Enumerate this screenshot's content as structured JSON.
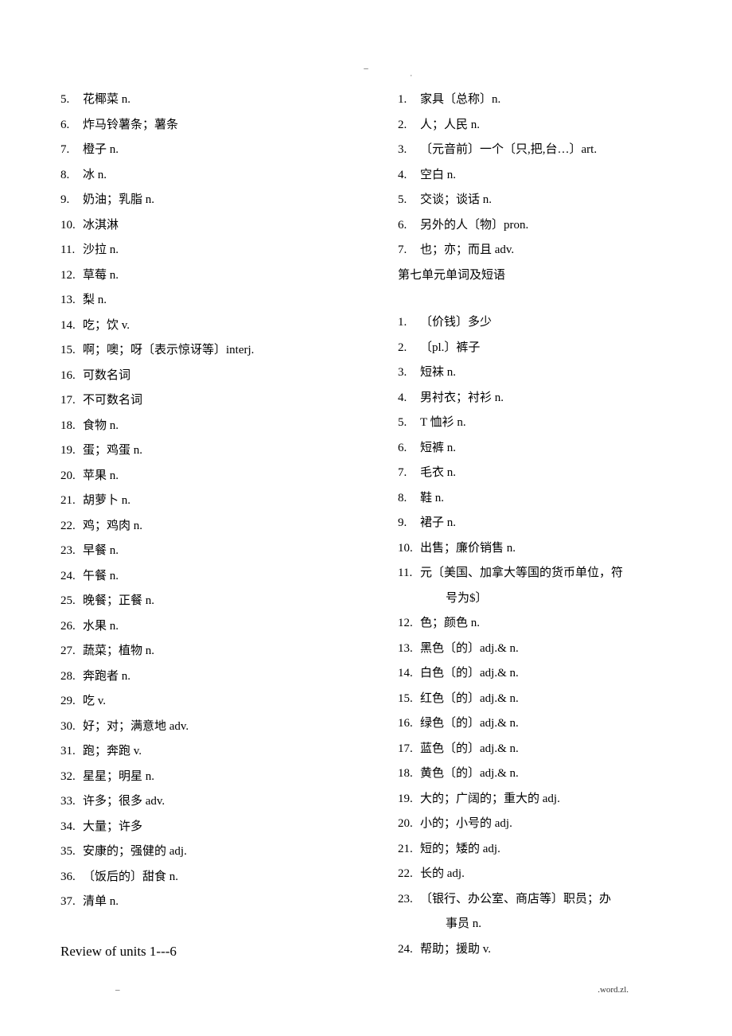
{
  "page_markers": {
    "top_dash": "–",
    "top_dot": "·",
    "footer_left": "–",
    "footer_right": ".word.zl."
  },
  "left_column": {
    "items": [
      {
        "num": "5.",
        "text": "花椰菜 n.",
        "indent": false
      },
      {
        "num": "6.",
        "text": "炸马铃薯条；薯条",
        "indent": false
      },
      {
        "num": "7.",
        "text": "橙子 n.",
        "indent": false
      },
      {
        "num": "8.",
        "text": "冰 n.",
        "indent": false
      },
      {
        "num": "9.",
        "text": " 奶油；乳脂 n.",
        "indent": false
      },
      {
        "num": "10.",
        "text": "冰淇淋",
        "indent": false
      },
      {
        "num": "11.",
        "text": "沙拉 n.",
        "indent": false
      },
      {
        "num": "12.",
        "text": "草莓 n.",
        "indent": false
      },
      {
        "num": "13.",
        "text": " 梨 n.",
        "indent": false
      },
      {
        "num": "14.",
        "text": " 吃；饮 v.",
        "indent": false
      },
      {
        "num": "15.",
        "text": "   啊；噢；呀〔表示惊讶等〕interj.",
        "indent": false
      },
      {
        "num": "16.",
        "text": "     可数名词",
        "indent": false
      },
      {
        "num": "17.",
        "text": "     不可数名词",
        "indent": false
      },
      {
        "num": "18.",
        "text": "食物 n.",
        "indent": false
      },
      {
        "num": "19.",
        "text": "蛋；鸡蛋 n.",
        "indent": false
      },
      {
        "num": "20.",
        "text": "苹果 n.",
        "indent": false
      },
      {
        "num": "21.",
        "text": "胡萝卜 n.",
        "indent": false
      },
      {
        "num": "22.",
        "text": "     鸡；鸡肉 n.",
        "indent": false
      },
      {
        "num": "23.",
        "text": "     早餐 n.",
        "indent": false
      },
      {
        "num": "24.",
        "text": "午餐 n.",
        "indent": false
      },
      {
        "num": "25.",
        "text": "晚餐；正餐 n.",
        "indent": false
      },
      {
        "num": "26.",
        "text": "水果 n.",
        "indent": false
      },
      {
        "num": "27.",
        "text": "蔬菜；植物 n.",
        "indent": false
      },
      {
        "num": "28.",
        "text": "奔跑者 n.",
        "indent": false
      },
      {
        "num": "29.",
        "text": "     吃 v.",
        "indent": false
      },
      {
        "num": "30.",
        "text": "     好；对；满意地 adv.",
        "indent": false
      },
      {
        "num": "31.",
        "text": "     跑；奔跑 v.",
        "indent": false
      },
      {
        "num": "32.",
        "text": "星星；明星 n.",
        "indent": false
      },
      {
        "num": "33.",
        "text": "     许多；很多 adv.",
        "indent": false
      },
      {
        "num": "34.",
        "text": "     大量；许多",
        "indent": false
      },
      {
        "num": "35.",
        "text": "     安康的；强健的 adj.",
        "indent": false
      },
      {
        "num": "36.",
        "text": "    〔饭后的〕甜食 n.",
        "indent": false
      },
      {
        "num": "37.",
        "text": "清单 n.",
        "indent": false
      }
    ],
    "review_heading": "Review of units 1---6"
  },
  "right_column": {
    "group1": [
      {
        "num": "1.",
        "text": "家具〔总称〕n.",
        "indent": false
      },
      {
        "num": "2.",
        "text": "人；人民 n.",
        "indent": false
      },
      {
        "num": "3.",
        "text": "〔元音前〕一个〔只,把,台…〕art.",
        "indent": false
      },
      {
        "num": "4.",
        "text": "空白 n.",
        "indent": false
      },
      {
        "num": "5.",
        "text": "交谈；谈话 n.",
        "indent": false
      },
      {
        "num": "6.",
        "text": "另外的人〔物〕pron.",
        "indent": false
      },
      {
        "num": "7.",
        "text": " 也；亦；而且 adv.",
        "indent": false
      }
    ],
    "section_heading": "第七单元单词及短语",
    "group2": [
      {
        "num": "1.",
        "text": "〔价钱〕多少",
        "indent": false
      },
      {
        "num": "2.",
        "text": "〔pl.〕裤子",
        "indent": false
      },
      {
        "num": "3.",
        "text": "短袜 n.",
        "indent": false
      },
      {
        "num": "4.",
        "text": "男衬衣；衬衫 n.",
        "indent": false
      },
      {
        "num": "5.",
        "text": "T 恤衫 n.",
        "indent": false
      },
      {
        "num": "6.",
        "text": "  短裤 n.",
        "indent": false
      },
      {
        "num": "7.",
        "text": "毛衣 n.",
        "indent": false
      },
      {
        "num": "8.",
        "text": "鞋 n.",
        "indent": false
      },
      {
        "num": "9.",
        "text": "裙子 n.",
        "indent": false
      },
      {
        "num": "10.",
        "text": "出售；廉价销售 n.",
        "indent": false
      },
      {
        "num": "11.",
        "text": "元〔美国、加拿大等国的货币单位，符",
        "indent": false
      },
      {
        "num": "",
        "text": "号为$〕",
        "indent": true
      },
      {
        "num": "12.",
        "text": "色；颜色 n.",
        "indent": false
      },
      {
        "num": "13.",
        "text": "黑色〔的〕adj.& n.",
        "indent": false
      },
      {
        "num": "14.",
        "text": "白色〔的〕adj.& n.",
        "indent": false
      },
      {
        "num": "15.",
        "text": "红色〔的〕adj.& n.",
        "indent": false
      },
      {
        "num": "16.",
        "text": "绿色〔的〕adj.& n.",
        "indent": false
      },
      {
        "num": "17.",
        "text": "   蓝色〔的〕adj.& n.",
        "indent": false
      },
      {
        "num": "18.",
        "text": "   黄色〔的〕adj.& n.",
        "indent": false
      },
      {
        "num": "19.",
        "text": "大的；广阔的；重大的 adj.",
        "indent": false
      },
      {
        "num": "20.",
        "text": "     小的；小号的 adj.",
        "indent": false
      },
      {
        "num": "21.",
        "text": "     短的；矮的 adj.",
        "indent": false
      },
      {
        "num": "22.",
        "text": "     长的 adj.",
        "indent": false
      },
      {
        "num": "23.",
        "text": "   〔银行、办公室、商店等〕职员；办",
        "indent": false
      },
      {
        "num": "",
        "text": "事员 n.",
        "indent": true
      },
      {
        "num": "24.",
        "text": "帮助；援助 v.",
        "indent": false
      }
    ]
  }
}
